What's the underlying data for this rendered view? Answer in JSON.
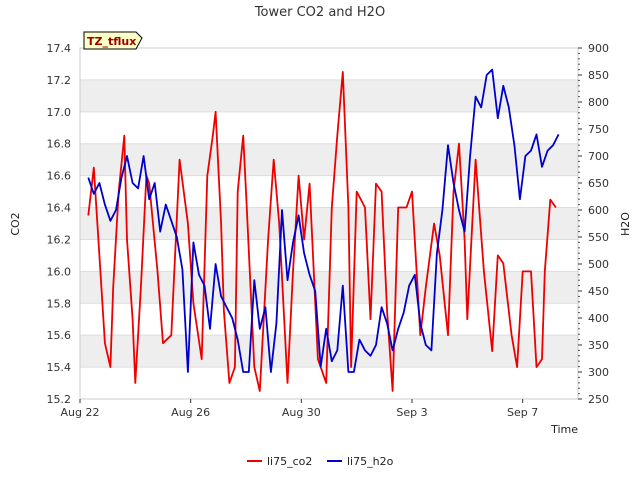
{
  "chart_data": {
    "type": "line",
    "title": "Tower CO2 and H2O",
    "badge": "TZ_tflux",
    "xlabel": "Time",
    "ylabel_left": "CO2",
    "ylabel_right": "H2O",
    "x_ticks": [
      "Aug 22",
      "Aug 26",
      "Aug 30",
      "Sep 3",
      "Sep 7"
    ],
    "x_tick_days": [
      0,
      4,
      8,
      12,
      16
    ],
    "xlim_days": [
      0,
      18
    ],
    "ylim_left": [
      15.2,
      17.4
    ],
    "yticks_left": [
      "15.2",
      "15.4",
      "15.6",
      "15.8",
      "16.0",
      "16.2",
      "16.4",
      "16.6",
      "16.8",
      "17.0",
      "17.2",
      "17.4"
    ],
    "ylim_right": [
      250,
      900
    ],
    "yticks_right": [
      "250",
      "300",
      "350",
      "400",
      "450",
      "500",
      "550",
      "600",
      "650",
      "700",
      "750",
      "800",
      "850",
      "900"
    ],
    "colors": {
      "co2": "#ee0000",
      "h2o": "#0000cc",
      "band": "#eeeeee"
    },
    "legend": [
      "li75_co2",
      "li75_h2o"
    ],
    "series": [
      {
        "name": "li75_co2",
        "axis": "left",
        "x": [
          0.3,
          0.5,
          0.7,
          0.9,
          1.1,
          1.2,
          1.4,
          1.6,
          1.7,
          1.9,
          2.0,
          2.2,
          2.4,
          2.5,
          2.8,
          3.0,
          3.3,
          3.6,
          3.9,
          4.1,
          4.4,
          4.6,
          4.8,
          4.9,
          5.1,
          5.2,
          5.4,
          5.6,
          5.7,
          5.9,
          6.0,
          6.3,
          6.5,
          6.8,
          7.0,
          7.2,
          7.5,
          7.7,
          7.9,
          8.1,
          8.3,
          8.6,
          8.9,
          9.1,
          9.3,
          9.5,
          9.7,
          9.8,
          10.0,
          10.3,
          10.5,
          10.7,
          10.9,
          11.1,
          11.3,
          11.5,
          11.8,
          12.0,
          12.3,
          12.5,
          12.8,
          13.0,
          13.3,
          13.5,
          13.7,
          13.9,
          14.0,
          14.3,
          14.6,
          14.9,
          15.1,
          15.3,
          15.6,
          15.8,
          16.0,
          16.3,
          16.5,
          16.7,
          16.8,
          17.0,
          17.2
        ],
        "values": [
          16.35,
          16.65,
          16.1,
          15.55,
          15.4,
          15.9,
          16.5,
          16.85,
          16.2,
          15.7,
          15.3,
          15.9,
          16.6,
          16.55,
          16.0,
          15.55,
          15.6,
          16.7,
          16.3,
          15.8,
          15.45,
          16.6,
          16.85,
          17.0,
          16.3,
          15.75,
          15.3,
          15.4,
          16.5,
          16.85,
          16.5,
          15.4,
          15.25,
          16.2,
          16.7,
          16.3,
          15.3,
          16.0,
          16.6,
          16.2,
          16.55,
          15.45,
          15.3,
          16.4,
          16.85,
          17.25,
          16.4,
          15.4,
          16.5,
          16.4,
          15.7,
          16.55,
          16.5,
          15.75,
          15.25,
          16.4,
          16.4,
          16.5,
          15.6,
          15.9,
          16.3,
          16.1,
          15.6,
          16.5,
          16.8,
          16.2,
          15.7,
          16.7,
          16.0,
          15.5,
          16.1,
          16.05,
          15.6,
          15.4,
          16.0,
          16.0,
          15.4,
          15.45,
          16.0,
          16.45,
          16.4
        ]
      },
      {
        "name": "li75_h2o",
        "axis": "right",
        "x": [
          0.3,
          0.5,
          0.7,
          0.9,
          1.1,
          1.3,
          1.5,
          1.7,
          1.9,
          2.1,
          2.3,
          2.5,
          2.7,
          2.9,
          3.1,
          3.3,
          3.5,
          3.7,
          3.9,
          4.1,
          4.3,
          4.5,
          4.7,
          4.9,
          5.1,
          5.3,
          5.5,
          5.7,
          5.9,
          6.1,
          6.3,
          6.5,
          6.7,
          6.9,
          7.1,
          7.3,
          7.5,
          7.7,
          7.9,
          8.1,
          8.3,
          8.5,
          8.7,
          8.9,
          9.1,
          9.3,
          9.5,
          9.7,
          9.9,
          10.1,
          10.3,
          10.5,
          10.7,
          10.9,
          11.1,
          11.3,
          11.5,
          11.7,
          11.9,
          12.1,
          12.3,
          12.5,
          12.7,
          12.9,
          13.1,
          13.3,
          13.5,
          13.7,
          13.9,
          14.1,
          14.3,
          14.5,
          14.7,
          14.9,
          15.1,
          15.3,
          15.5,
          15.7,
          15.9,
          16.1,
          16.3,
          16.5,
          16.7,
          16.9,
          17.1,
          17.3
        ],
        "values": [
          660,
          630,
          650,
          610,
          580,
          600,
          660,
          700,
          650,
          640,
          700,
          620,
          650,
          560,
          610,
          580,
          550,
          490,
          300,
          540,
          480,
          460,
          380,
          500,
          440,
          420,
          400,
          360,
          300,
          300,
          470,
          380,
          420,
          300,
          390,
          600,
          470,
          540,
          590,
          520,
          480,
          450,
          310,
          380,
          320,
          340,
          460,
          300,
          300,
          360,
          340,
          330,
          350,
          420,
          390,
          340,
          380,
          410,
          460,
          480,
          390,
          350,
          340,
          520,
          600,
          720,
          650,
          600,
          560,
          700,
          810,
          790,
          850,
          860,
          770,
          830,
          790,
          720,
          620,
          700,
          710,
          740,
          680,
          710,
          720,
          740
        ]
      }
    ]
  }
}
